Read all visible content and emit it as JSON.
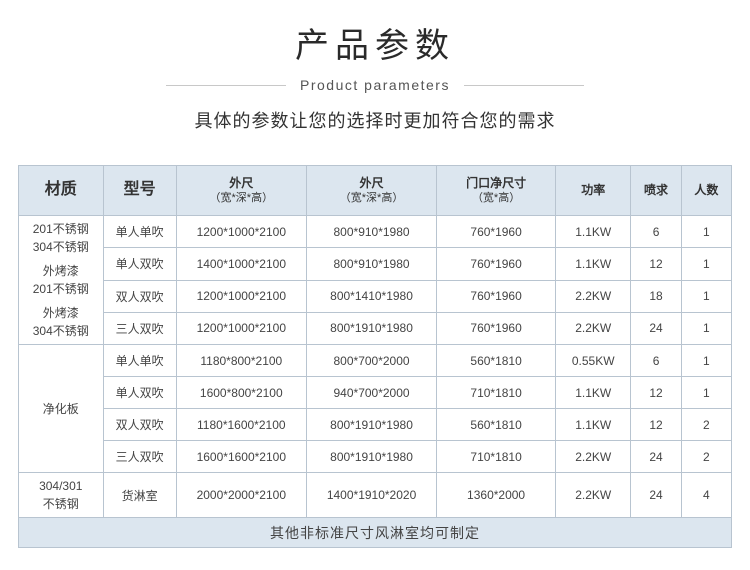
{
  "header": {
    "title": "产品参数",
    "subtitle": "Product parameters",
    "desc": "具体的参数让您的选择时更加符合您的需求"
  },
  "table": {
    "columns": [
      {
        "key": "material",
        "label": "材质",
        "big": true
      },
      {
        "key": "model",
        "label": "型号",
        "big": true
      },
      {
        "key": "dim1",
        "label": "外尺",
        "sub": "（宽*深*高）"
      },
      {
        "key": "dim2",
        "label": "外尺",
        "sub": "（宽*深*高）"
      },
      {
        "key": "dim3",
        "label": "门口净尺寸",
        "sub": "（宽*高）"
      },
      {
        "key": "power",
        "label": "功率"
      },
      {
        "key": "spray",
        "label": "喷求"
      },
      {
        "key": "people",
        "label": "人数"
      }
    ],
    "materials": [
      {
        "rowspan": 4,
        "label": "201不锈钢\n304不锈钢\n\n外烤漆\n201不锈钢\n\n外烤漆\n304不锈钢"
      },
      {
        "rowspan": 4,
        "label": "净化板"
      },
      {
        "rowspan": 1,
        "label": "304/301\n不锈钢"
      }
    ],
    "rows": [
      {
        "matIdx": 0,
        "model": "单人单吹",
        "d1": "1200*1000*2100",
        "d2": "800*910*1980",
        "d3": "760*1960",
        "power": "1.1KW",
        "spray": "6",
        "people": "1"
      },
      {
        "model": "单人双吹",
        "d1": "1400*1000*2100",
        "d2": "800*910*1980",
        "d3": "760*1960",
        "power": "1.1KW",
        "spray": "12",
        "people": "1"
      },
      {
        "model": "双人双吹",
        "d1": "1200*1000*2100",
        "d2": "800*1410*1980",
        "d3": "760*1960",
        "power": "2.2KW",
        "spray": "18",
        "people": "1"
      },
      {
        "model": "三人双吹",
        "d1": "1200*1000*2100",
        "d2": "800*1910*1980",
        "d3": "760*1960",
        "power": "2.2KW",
        "spray": "24",
        "people": "1"
      },
      {
        "matIdx": 1,
        "model": "单人单吹",
        "d1": "1180*800*2100",
        "d2": "800*700*2000",
        "d3": "560*1810",
        "power": "0.55KW",
        "spray": "6",
        "people": "1"
      },
      {
        "model": "单人双吹",
        "d1": "1600*800*2100",
        "d2": "940*700*2000",
        "d3": "710*1810",
        "power": "1.1KW",
        "spray": "12",
        "people": "1"
      },
      {
        "model": "双人双吹",
        "d1": "1180*1600*2100",
        "d2": "800*1910*1980",
        "d3": "560*1810",
        "power": "1.1KW",
        "spray": "12",
        "people": "2"
      },
      {
        "model": "三人双吹",
        "d1": "1600*1600*2100",
        "d2": "800*1910*1980",
        "d3": "710*1810",
        "power": "2.2KW",
        "spray": "24",
        "people": "2"
      },
      {
        "matIdx": 2,
        "model": "货淋室",
        "d1": "2000*2000*2100",
        "d2": "1400*1910*2020",
        "d3": "1360*2000",
        "power": "2.2KW",
        "spray": "24",
        "people": "4"
      }
    ],
    "footer": "其他非标准尺寸风淋室均可制定",
    "colors": {
      "header_bg": "#dce6ef",
      "border": "#b8c4d0",
      "text": "#444444",
      "page_bg": "#ffffff"
    }
  }
}
